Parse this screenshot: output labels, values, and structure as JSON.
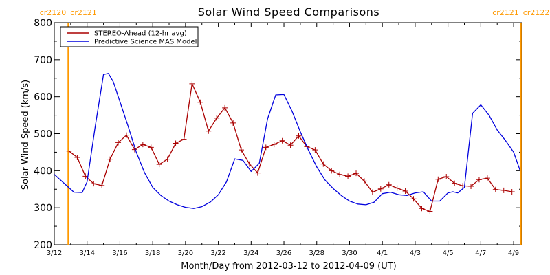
{
  "chart_data": {
    "type": "line",
    "title": "Solar Wind Speed Comparisons",
    "xlabel": "Month/Day from 2012-03-12 to 2012-04-09 (UT)",
    "ylabel": "Solar Wind Speed (km/s)",
    "xlim": [
      0,
      28.5
    ],
    "ylim": [
      200,
      800
    ],
    "yticks": [
      200,
      300,
      400,
      500,
      600,
      700,
      800
    ],
    "xticks": [
      {
        "x": 0,
        "label": "3/12"
      },
      {
        "x": 2,
        "label": "3/14"
      },
      {
        "x": 4,
        "label": "3/16"
      },
      {
        "x": 6,
        "label": "3/18"
      },
      {
        "x": 8,
        "label": "3/20"
      },
      {
        "x": 10,
        "label": "3/22"
      },
      {
        "x": 12,
        "label": "3/24"
      },
      {
        "x": 14,
        "label": "3/26"
      },
      {
        "x": 16,
        "label": "3/28"
      },
      {
        "x": 18,
        "label": "3/30"
      },
      {
        "x": 20,
        "label": "4/1"
      },
      {
        "x": 22,
        "label": "4/3"
      },
      {
        "x": 24,
        "label": "4/5"
      },
      {
        "x": 26,
        "label": "4/7"
      },
      {
        "x": 28,
        "label": "4/9"
      }
    ],
    "legend_position": "top-left",
    "grid": false,
    "series": [
      {
        "name": "STEREO-Ahead (12-hr avg)",
        "color": "#aa0000",
        "marker": "plus",
        "x": [
          0.9,
          1.4,
          1.9,
          2.4,
          2.9,
          3.4,
          3.9,
          4.4,
          4.9,
          5.4,
          5.9,
          6.4,
          6.9,
          7.4,
          7.9,
          8.4,
          8.9,
          9.4,
          9.9,
          10.4,
          10.9,
          11.4,
          11.9,
          12.4,
          12.9,
          13.4,
          13.9,
          14.4,
          14.9,
          15.4,
          15.9,
          16.4,
          16.9,
          17.4,
          17.9,
          18.4,
          18.9,
          19.4,
          19.9,
          20.4,
          20.9,
          21.4,
          21.9,
          22.4,
          22.9,
          23.4,
          23.9,
          24.4,
          24.9,
          25.4,
          25.9,
          26.4,
          26.9,
          27.4,
          27.9
        ],
        "y": [
          453,
          436,
          385,
          365,
          360,
          431,
          476,
          496,
          457,
          471,
          463,
          417,
          431,
          474,
          485,
          635,
          585,
          507,
          542,
          570,
          529,
          456,
          418,
          394,
          463,
          471,
          481,
          469,
          494,
          465,
          456,
          418,
          400,
          390,
          385,
          393,
          372,
          342,
          351,
          362,
          353,
          345,
          324,
          298,
          290,
          377,
          384,
          366,
          359,
          358,
          376,
          380,
          349,
          347,
          343
        ]
      },
      {
        "name": "Predictive Science MAS Model",
        "color": "#0000dd",
        "marker": "none",
        "x": [
          0,
          0.5,
          1.2,
          1.7,
          2.0,
          2.5,
          3.0,
          3.3,
          3.6,
          3.9,
          4.5,
          5.0,
          5.5,
          6.0,
          6.5,
          7.0,
          7.5,
          8.0,
          8.5,
          9.0,
          9.5,
          10.0,
          10.5,
          11.0,
          11.5,
          12.0,
          12.5,
          13.0,
          13.5,
          14.0,
          14.5,
          15.0,
          15.5,
          16.0,
          16.5,
          17.0,
          17.5,
          18.0,
          18.5,
          19.0,
          19.5,
          20.0,
          20.5,
          21.0,
          21.5,
          22.0,
          22.5,
          23.0,
          23.5,
          24.0,
          24.3,
          24.6,
          25.0,
          25.5,
          26.0,
          26.5,
          27.0,
          27.5,
          28.0,
          28.4
        ],
        "y": [
          390,
          370,
          342,
          341,
          370,
          520,
          660,
          663,
          640,
          600,
          520,
          450,
          395,
          355,
          333,
          318,
          308,
          301,
          298,
          303,
          315,
          335,
          370,
          432,
          428,
          398,
          420,
          540,
          605,
          606,
          560,
          505,
          455,
          410,
          375,
          352,
          333,
          318,
          310,
          308,
          315,
          338,
          342,
          335,
          333,
          340,
          343,
          318,
          318,
          340,
          343,
          340,
          355,
          555,
          578,
          550,
          510,
          482,
          450,
          400
        ]
      }
    ],
    "annotations": [
      {
        "x": 0.85,
        "label_left": "cr2120",
        "label_right": "cr2121",
        "color": "#ff9900"
      },
      {
        "x": 28.45,
        "label_left": "cr2121",
        "label_right": "cr2122",
        "color": "#ff9900"
      }
    ]
  }
}
